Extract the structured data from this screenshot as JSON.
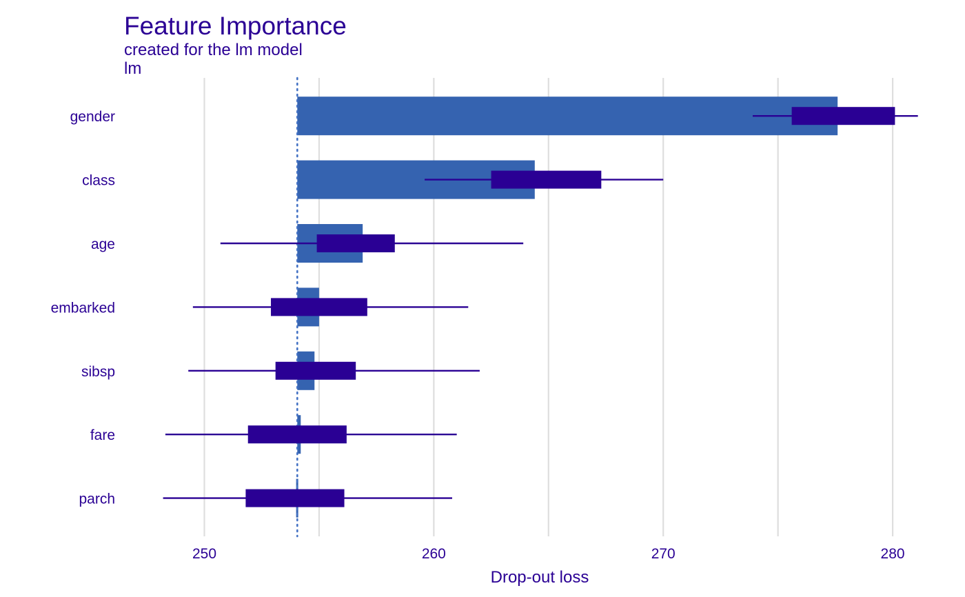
{
  "chart_data": {
    "type": "bar",
    "title": "Feature Importance",
    "subtitle": "created for the lm model",
    "model_label": "lm",
    "xlabel": "Drop-out loss",
    "ylabel": "",
    "xlim": [
      246.5,
      281.5
    ],
    "xticks": [
      250,
      260,
      270,
      280
    ],
    "baseline": 254.05,
    "grid": true,
    "legend": "none",
    "categories": [
      "gender",
      "class",
      "age",
      "embarked",
      "sibsp",
      "fare",
      "parch"
    ],
    "values": [
      277.6,
      264.4,
      256.9,
      255.0,
      254.8,
      254.2,
      254.0
    ],
    "boxplots": [
      {
        "feature": "gender",
        "min": 273.9,
        "q1": 275.6,
        "q3": 280.1,
        "max": 281.1
      },
      {
        "feature": "class",
        "min": 259.6,
        "q1": 262.5,
        "q3": 267.3,
        "max": 270.0
      },
      {
        "feature": "age",
        "min": 250.7,
        "q1": 254.9,
        "q3": 258.3,
        "max": 263.9
      },
      {
        "feature": "embarked",
        "min": 249.5,
        "q1": 252.9,
        "q3": 257.1,
        "max": 261.5
      },
      {
        "feature": "sibsp",
        "min": 249.3,
        "q1": 253.1,
        "q3": 256.6,
        "max": 262.0
      },
      {
        "feature": "fare",
        "min": 248.3,
        "q1": 251.9,
        "q3": 256.2,
        "max": 261.0
      },
      {
        "feature": "parch",
        "min": 248.2,
        "q1": 251.8,
        "q3": 256.1,
        "max": 260.8
      }
    ],
    "colors": {
      "bar": "#3563B0",
      "box": "#2A0094",
      "text": "#2A0094",
      "grid": "#DEDEDE",
      "baseline": "#4472C4"
    }
  }
}
